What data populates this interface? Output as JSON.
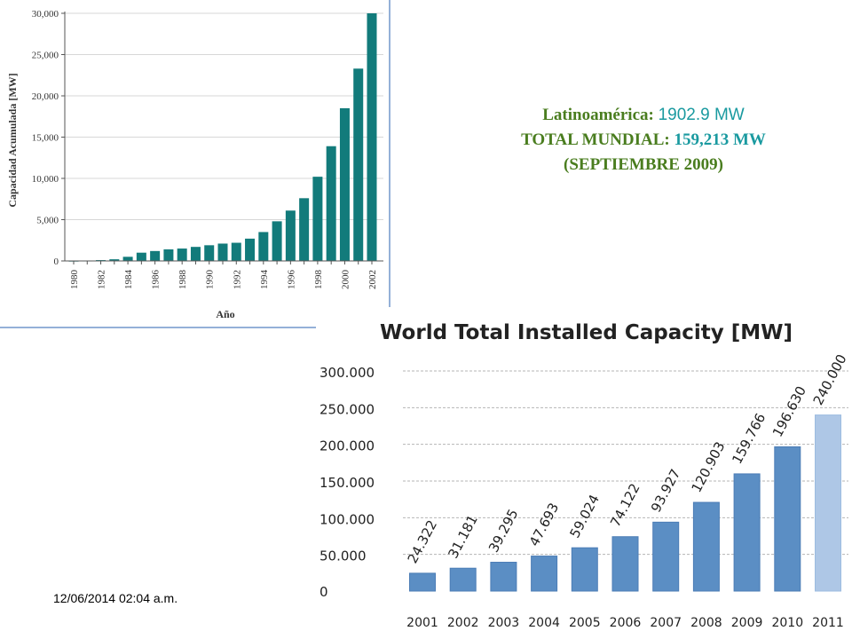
{
  "info": {
    "latam_label": "Latinoamérica:",
    "latam_value": "1902.9 MW",
    "total_label": "TOTAL MUNDIAL:",
    "total_value": "159,213 MW",
    "date_note": "(SEPTIEMBRE 2009)"
  },
  "timestamp": "12/06/2014 02:04 a.m.",
  "colors": {
    "chart1_bar": "#127b7b",
    "chart2_bar": "#5b8ec4",
    "chart2_bar_last": "#aec7e6",
    "info_label": "#4a7d1f",
    "info_value": "#1a9aa0"
  },
  "chart_data": [
    {
      "type": "bar",
      "title": "",
      "xlabel": "Año",
      "ylabel": "Capacidad Acumulada [MW]",
      "ylim": [
        0,
        30000
      ],
      "yticks": [
        "0",
        "5,000",
        "10,000",
        "15,000",
        "20,000",
        "25,000",
        "30,000"
      ],
      "categories": [
        "1980",
        "1981",
        "1982",
        "1983",
        "1984",
        "1985",
        "1986",
        "1987",
        "1988",
        "1989",
        "1990",
        "1991",
        "1992",
        "1993",
        "1994",
        "1995",
        "1996",
        "1997",
        "1998",
        "1999",
        "2000",
        "2001",
        "2002"
      ],
      "xtick_labels": [
        "1980",
        "1982",
        "1984",
        "1986",
        "1988",
        "1990",
        "1992",
        "1994",
        "1996",
        "1998",
        "2000",
        "2002"
      ],
      "values": [
        10,
        30,
        100,
        200,
        500,
        1000,
        1200,
        1400,
        1500,
        1700,
        1900,
        2100,
        2200,
        2700,
        3500,
        4800,
        6100,
        7600,
        10200,
        13900,
        18500,
        23300,
        30000
      ],
      "grid": true
    },
    {
      "type": "bar",
      "title": "World Total Installed Capacity [MW]",
      "xlabel": "",
      "ylabel": "",
      "ylim": [
        0,
        300000
      ],
      "yticks": [
        "0",
        "50.000",
        "100.000",
        "150.000",
        "200.000",
        "250.000",
        "300.000"
      ],
      "categories": [
        "2001",
        "2002",
        "2003",
        "2004",
        "2005",
        "2006",
        "2007",
        "2008",
        "2009",
        "2010",
        "2011"
      ],
      "values": [
        24322,
        31181,
        39295,
        47693,
        59024,
        74122,
        93927,
        120903,
        159766,
        196630,
        240000
      ],
      "value_labels": [
        "24.322",
        "31.181",
        "39.295",
        "47.693",
        "59.024",
        "74.122",
        "93.927",
        "120.903",
        "159.766",
        "196.630",
        "240.000"
      ],
      "grid": true
    }
  ]
}
